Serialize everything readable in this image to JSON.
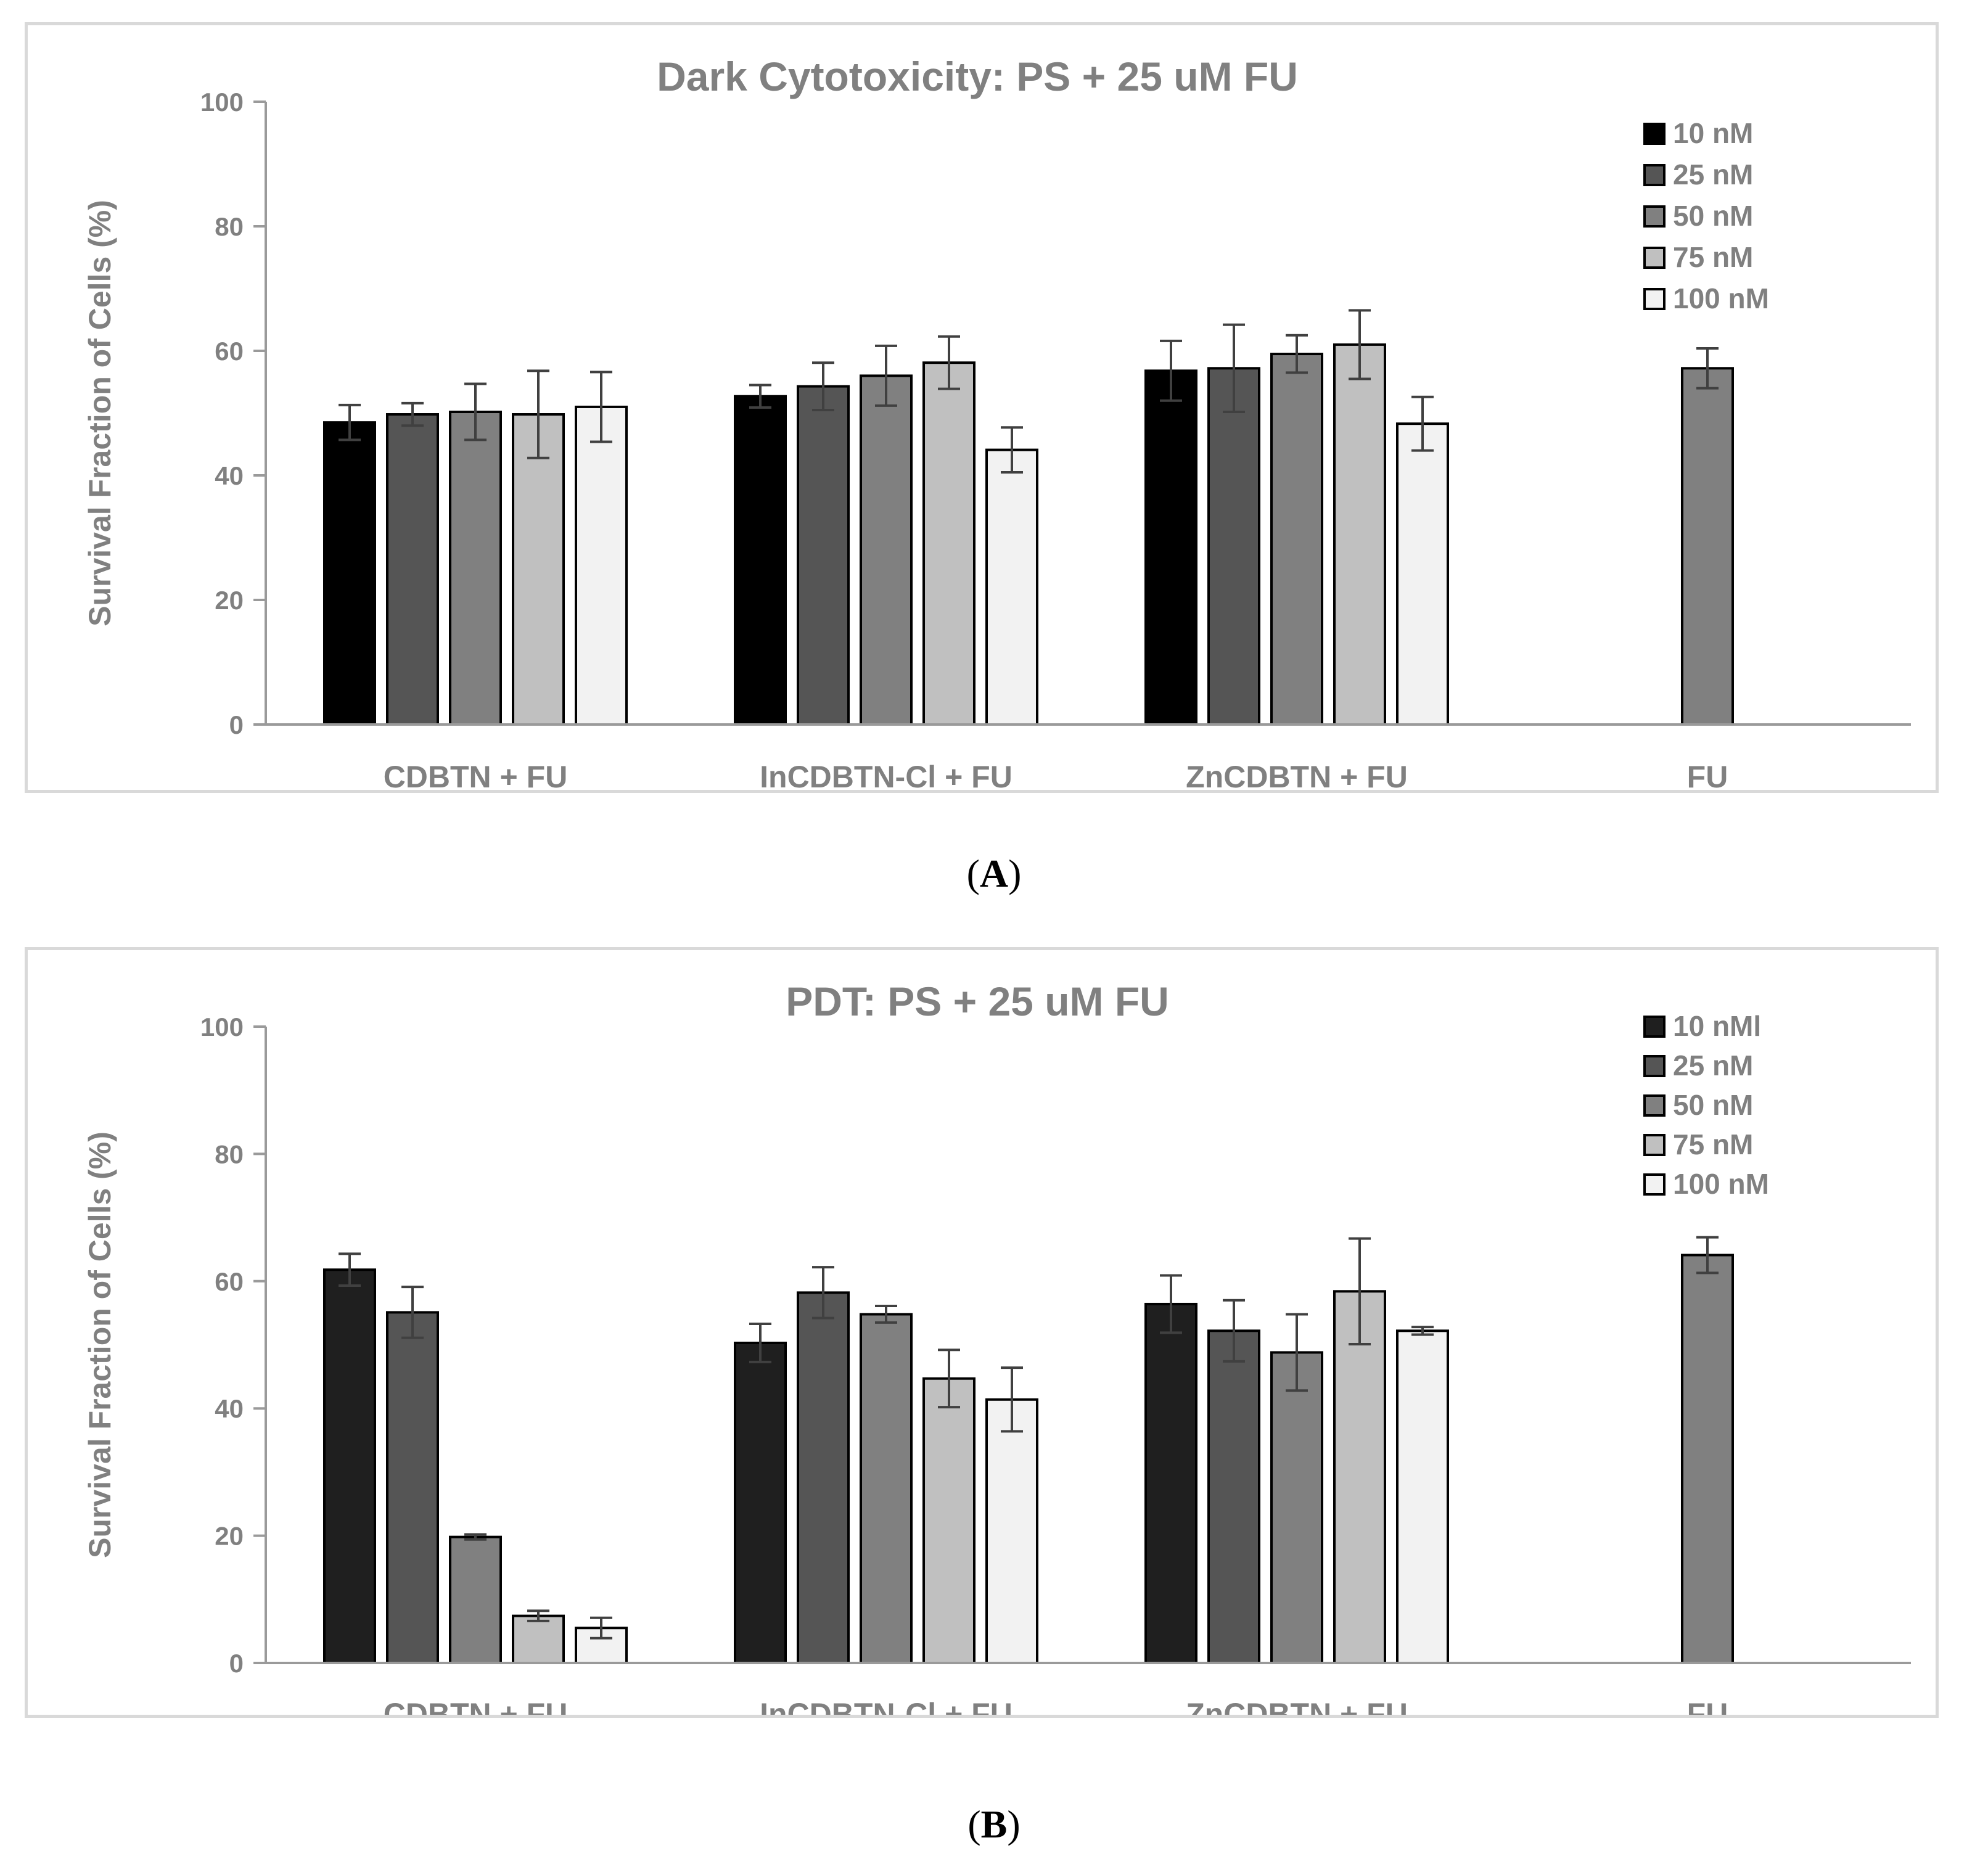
{
  "colors": {
    "series": [
      "#1f1f1f",
      "#555555",
      "#808080",
      "#c0c0c0",
      "#f2f2f2"
    ],
    "series_a_first": "#000000",
    "text": "#808080",
    "axis": "#9a9a9a",
    "error": "#404040",
    "border": "#d9d9d9"
  },
  "captions": [
    {
      "open": "(",
      "letter": "A",
      "close": ")"
    },
    {
      "open": "(",
      "letter": "B",
      "close": ")"
    }
  ],
  "chart_data": [
    {
      "type": "bar",
      "title": "Dark Cytotoxicity: PS + 25 uM FU",
      "xlabel": "",
      "ylabel": "Survival Fraction of Cells (%)",
      "ylim": [
        0,
        100
      ],
      "yticks": [
        "0",
        "20",
        "40",
        "60",
        "80",
        "100"
      ],
      "grid": false,
      "legend_position": "top-right",
      "categories": [
        "CDBTN + FU",
        "InCDBTN-Cl + FU",
        "ZnCDBTN + FU",
        "FU"
      ],
      "series": [
        {
          "name": "10   nM",
          "values": [
            48.5,
            52.7,
            56.8,
            null
          ],
          "errors": [
            2.8,
            1.8,
            4.8,
            null
          ]
        },
        {
          "name": "25   nM",
          "values": [
            49.8,
            54.3,
            57.2,
            null
          ],
          "errors": [
            1.8,
            3.8,
            7.0,
            null
          ]
        },
        {
          "name": "50   nM",
          "values": [
            50.2,
            56.0,
            59.5,
            57.2
          ],
          "errors": [
            4.5,
            4.8,
            3.0,
            3.2
          ]
        },
        {
          "name": "75   nM",
          "values": [
            49.8,
            58.1,
            61.0,
            null
          ],
          "errors": [
            7.0,
            4.2,
            5.5,
            null
          ]
        },
        {
          "name": "100 nM",
          "values": [
            51.0,
            44.1,
            48.3,
            null
          ],
          "errors": [
            5.6,
            3.6,
            4.3,
            null
          ]
        }
      ]
    },
    {
      "type": "bar",
      "title": "PDT: PS + 25 uM FU",
      "xlabel": "",
      "ylabel": "Survival Fraction of Cells (%)",
      "ylim": [
        0,
        100
      ],
      "yticks": [
        "0",
        "20",
        "40",
        "60",
        "80",
        "100"
      ],
      "grid": false,
      "legend_position": "top-right",
      "categories": [
        "CDBTN + FU",
        "InCDBTN-Cl + FU",
        "ZnCDBTN + FU",
        "FU"
      ],
      "series": [
        {
          "name": "10   nMl",
          "values": [
            61.8,
            50.3,
            56.4,
            null
          ],
          "errors": [
            2.5,
            3.0,
            4.5,
            null
          ]
        },
        {
          "name": "25   nM",
          "values": [
            55.1,
            58.2,
            52.2,
            null
          ],
          "errors": [
            4.0,
            4.0,
            4.8,
            null
          ]
        },
        {
          "name": "50   nM",
          "values": [
            19.8,
            54.8,
            48.8,
            64.1
          ],
          "errors": [
            0.4,
            1.3,
            6.0,
            2.8
          ]
        },
        {
          "name": "75   nM",
          "values": [
            7.4,
            44.7,
            58.4,
            null
          ],
          "errors": [
            0.8,
            4.5,
            8.3,
            null
          ]
        },
        {
          "name": "100 nM",
          "values": [
            5.5,
            41.4,
            52.2,
            null
          ],
          "errors": [
            1.6,
            5.0,
            0.6,
            null
          ]
        }
      ]
    }
  ]
}
